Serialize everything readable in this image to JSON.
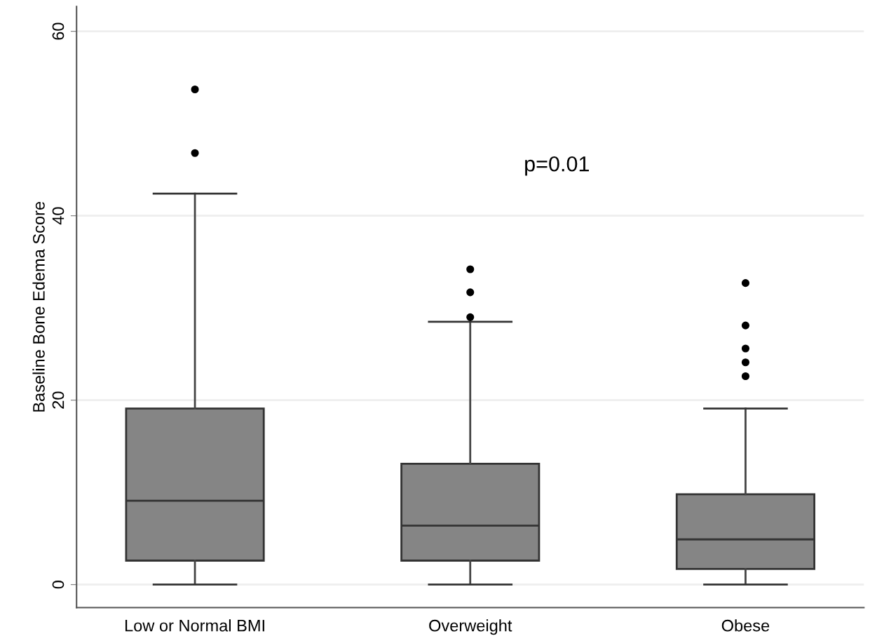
{
  "chart_data": {
    "type": "box",
    "ylabel": "Baseline Bone Edema Score",
    "categories": [
      "Low or Normal BMI",
      "Overweight",
      "Obese"
    ],
    "boxes": [
      {
        "low": 0,
        "q1": 2.6,
        "median": 9.1,
        "q3": 19.1,
        "high": 42.4,
        "outliers": [
          46.8,
          53.7
        ]
      },
      {
        "low": 0,
        "q1": 2.6,
        "median": 6.4,
        "q3": 13.1,
        "high": 28.5,
        "outliers": [
          29.0,
          31.7,
          34.2
        ]
      },
      {
        "low": 0,
        "q1": 1.7,
        "median": 4.9,
        "q3": 9.8,
        "high": 19.1,
        "outliers": [
          22.6,
          24.1,
          25.6,
          28.1,
          32.7
        ]
      }
    ],
    "color": "#858585",
    "ylim": [
      -2.5,
      62.7
    ],
    "yticks": [
      0,
      20,
      40,
      60
    ],
    "grid": "y",
    "annotations": [
      "p=0.01"
    ]
  }
}
